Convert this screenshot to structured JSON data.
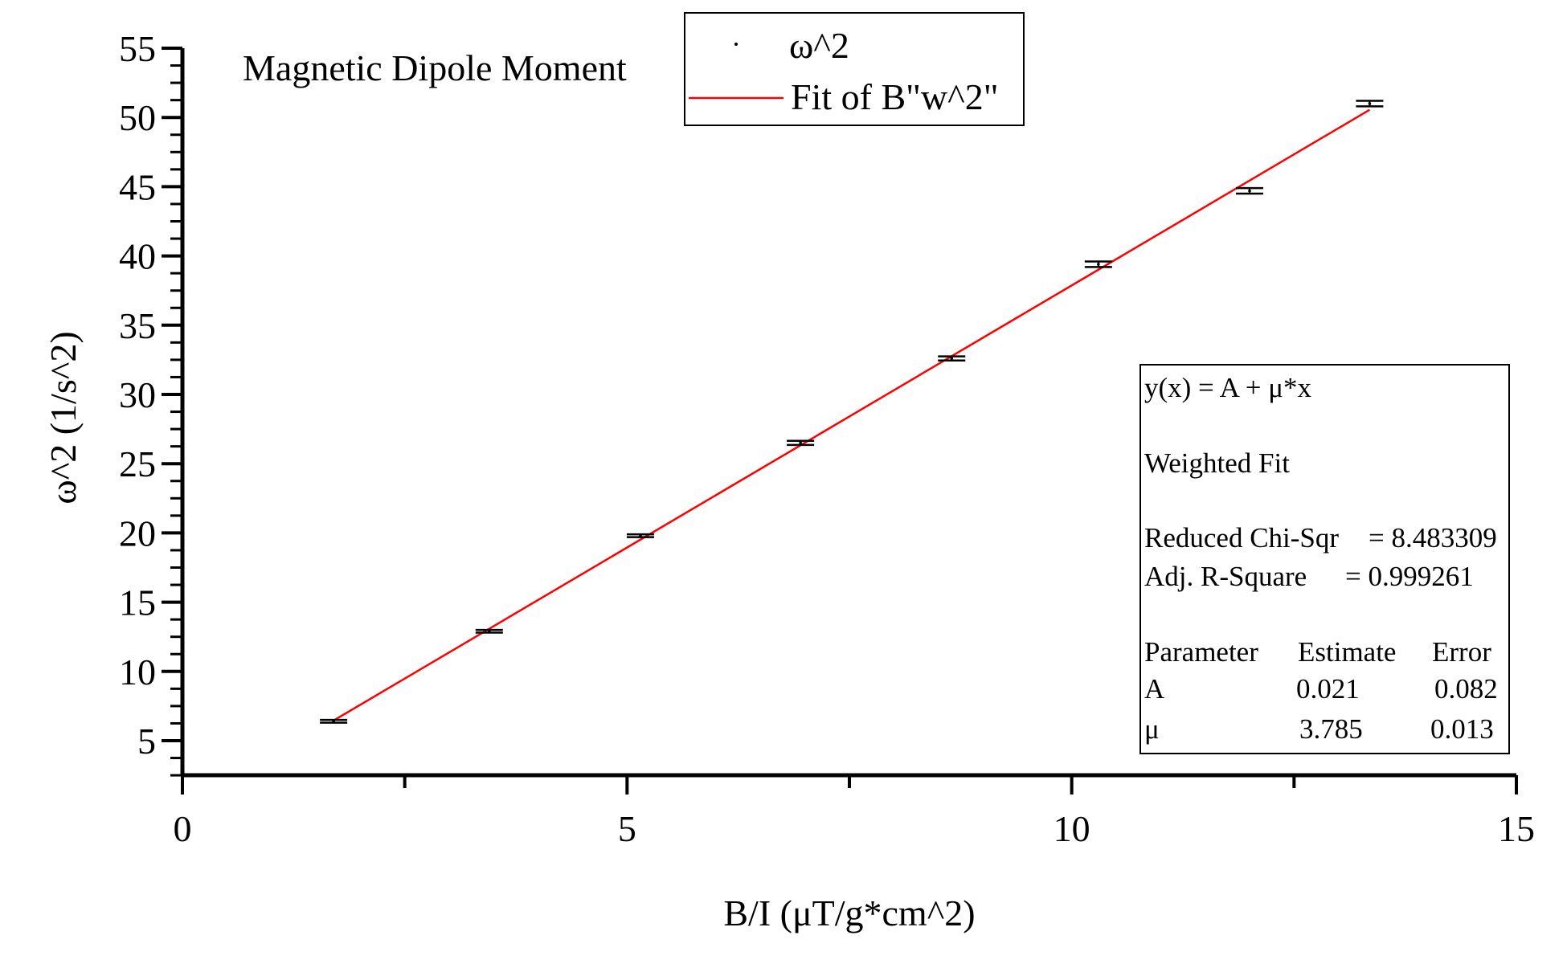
{
  "chart_data": {
    "type": "scatter",
    "title": "Magnetic Dipole Moment",
    "xlabel": "B/I (μT/g*cm^2)",
    "ylabel": "ω^2 (1/s^2)",
    "xlim": [
      0,
      15
    ],
    "ylim": [
      2.5,
      55
    ],
    "x_major_ticks": [
      0,
      5,
      10,
      15
    ],
    "x_minor_ticks": [
      2.5,
      7.5,
      12.5
    ],
    "y_major_ticks": [
      5,
      10,
      15,
      20,
      25,
      30,
      35,
      40,
      45,
      50,
      55
    ],
    "grid": false,
    "legend": {
      "placement": "top-center",
      "entries": [
        {
          "label": "ω^2",
          "marker": "dot",
          "color": "#000000"
        },
        {
          "label": "Fit of B\"w^2\"",
          "marker": "line",
          "color": "#ff0000"
        }
      ]
    },
    "series": [
      {
        "name": "ω^2",
        "color": "#000000",
        "points": [
          {
            "x": 1.7,
            "y": 6.4,
            "err": 0.1
          },
          {
            "x": 3.45,
            "y": 12.9,
            "err": 0.1
          },
          {
            "x": 5.15,
            "y": 19.8,
            "err": 0.1
          },
          {
            "x": 6.95,
            "y": 26.5,
            "err": 0.15
          },
          {
            "x": 8.65,
            "y": 32.6,
            "err": 0.15
          },
          {
            "x": 10.3,
            "y": 39.4,
            "err": 0.2
          },
          {
            "x": 12.0,
            "y": 44.7,
            "err": 0.2
          },
          {
            "x": 13.35,
            "y": 51.0,
            "err": 0.2
          }
        ]
      },
      {
        "name": "Fit of B\"w^2\"",
        "color": "#ff0000",
        "fit": {
          "A": 0.021,
          "mu": 3.785
        },
        "x_range": [
          1.7,
          13.35
        ]
      }
    ],
    "fit_box": {
      "placement": "bottom-right",
      "equation": "y(x) = A + μ*x",
      "method": "Weighted Fit",
      "chi_label": "Reduced Chi-Sqr",
      "chi_value": "= 8.483309",
      "r2_label": "Adj. R-Square",
      "r2_value": "= 0.999261",
      "table_header": [
        "Parameter",
        "Estimate",
        "Error"
      ],
      "table_rows": [
        [
          "A",
          "0.021",
          "0.082"
        ],
        [
          "μ",
          "3.785",
          "0.013"
        ]
      ]
    }
  }
}
